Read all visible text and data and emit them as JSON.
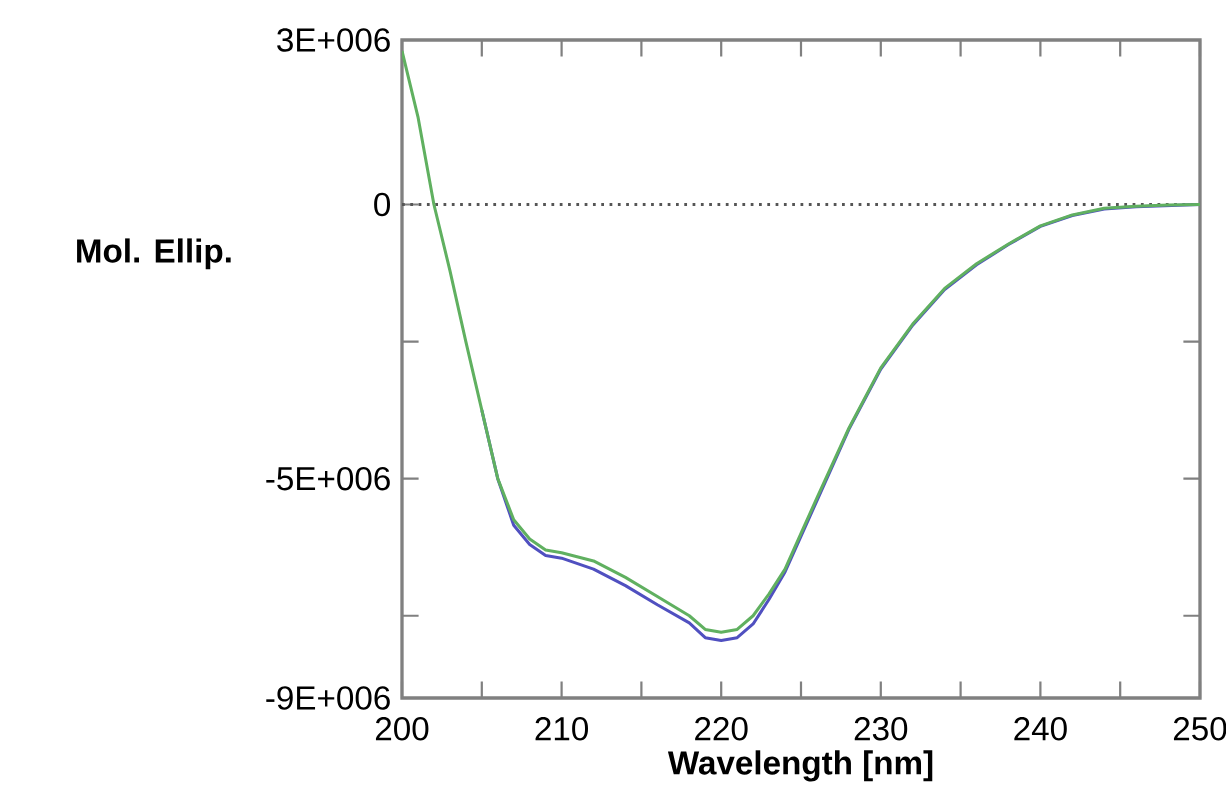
{
  "chart_data": {
    "type": "line",
    "xlabel": "Wavelength [nm]",
    "ylabel": "Mol. Ellip.",
    "xlim": [
      200,
      250
    ],
    "ylim": [
      -9000000,
      3000000
    ],
    "xticks": [
      200,
      {
        "value": 205,
        "label": null
      },
      210,
      {
        "value": 215,
        "label": null
      },
      220,
      {
        "value": 225,
        "label": null
      },
      230,
      {
        "value": 235,
        "label": null
      },
      240,
      {
        "value": 245,
        "label": null
      },
      250
    ],
    "yticks": [
      {
        "value": -9000000,
        "label": "-9E+006"
      },
      {
        "value": -7500000,
        "label": null
      },
      {
        "value": -5000000,
        "label": "-5E+006"
      },
      {
        "value": -2500000,
        "label": null
      },
      {
        "value": 0,
        "label": "0"
      },
      {
        "value": 3000000,
        "label": "3E+006"
      }
    ],
    "x": [
      200,
      201,
      202,
      203,
      204,
      205,
      206,
      207,
      208,
      209,
      210,
      212,
      214,
      216,
      218,
      219,
      220,
      221,
      222,
      223,
      224,
      225,
      226,
      228,
      230,
      232,
      234,
      236,
      238,
      240,
      242,
      244,
      246,
      248,
      250
    ],
    "series": [
      {
        "color": "#5050c0",
        "values": [
          null,
          null,
          null,
          null,
          null,
          -3750000,
          -5000000,
          -5850000,
          -6200000,
          -6400000,
          -6450000,
          -6650000,
          -6950000,
          -7300000,
          -7630000,
          -7900000,
          -7950000,
          -7900000,
          -7650000,
          -7200000,
          -6700000,
          -6050000,
          -5400000,
          -4100000,
          -3000000,
          -2200000,
          -1550000,
          -1100000,
          -730000,
          -400000,
          -200000,
          -80000,
          -40000,
          -20000,
          0
        ]
      },
      {
        "color": "#60b060",
        "values": [
          2800000,
          1600000,
          0,
          -1200000,
          -2500000,
          -3750000,
          -5000000,
          -5750000,
          -6100000,
          -6300000,
          -6350000,
          -6500000,
          -6800000,
          -7150000,
          -7500000,
          -7750000,
          -7800000,
          -7750000,
          -7500000,
          -7100000,
          -6650000,
          -6000000,
          -5350000,
          -4080000,
          -2980000,
          -2180000,
          -1530000,
          -1080000,
          -720000,
          -390000,
          -190000,
          -70000,
          -30000,
          -10000,
          0
        ]
      }
    ],
    "ref_lines": [
      {
        "axis": "y",
        "value": 0,
        "line_style": "dotted",
        "color": "#555555"
      }
    ],
    "grid": false,
    "marker": "none",
    "line_style": "solid"
  }
}
